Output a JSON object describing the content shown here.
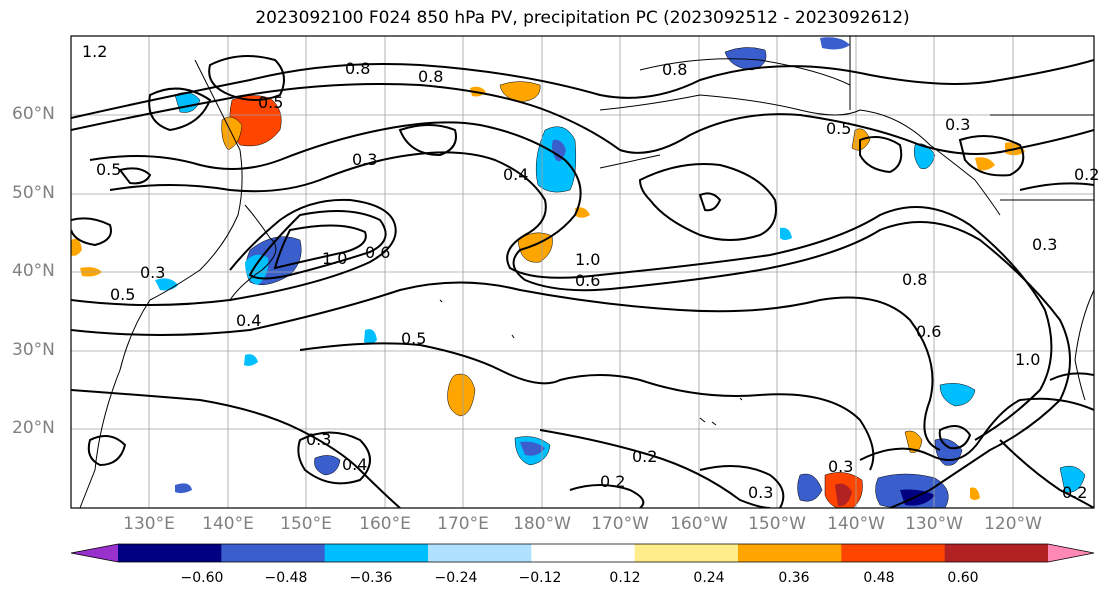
{
  "title": "2023092100 F024 850 hPa PV, precipitation PC (2023092512 - 2023092612)",
  "lat_labels": [
    "60°N",
    "50°N",
    "40°N",
    "30°N",
    "20°N"
  ],
  "lon_labels": [
    "130°E",
    "140°E",
    "150°E",
    "160°E",
    "170°E",
    "180°W",
    "170°W",
    "160°W",
    "150°W",
    "140°W",
    "130°W",
    "120°W"
  ],
  "contour_labels": [
    "1.2",
    "0.8",
    "0.8",
    "0.8",
    "0.5",
    "0.5",
    "0.5",
    "0.4",
    "0.3",
    "0.3",
    "0.3",
    "1.0",
    "1.0",
    "0.6",
    "0.6",
    "0.4",
    "0.5",
    "0.5",
    "0.3",
    "0.4",
    "0.2",
    "0.2",
    "0.3",
    "0.3",
    "0.8",
    "0.6",
    "1.0",
    "0.3",
    "0.2",
    "0.2"
  ],
  "colorbar": {
    "ticks": [
      "−0.60",
      "−0.48",
      "−0.36",
      "−0.24",
      "−0.12",
      "0.12",
      "0.24",
      "0.36",
      "0.48",
      "0.60"
    ],
    "colors": [
      "#9932cc",
      "#000080",
      "#3a5fcd",
      "#00bfff",
      "#b0e2ff",
      "#ffffff",
      "#ffec8b",
      "#ffa500",
      "#ff4500",
      "#b22222",
      "#ff89b4"
    ]
  }
}
